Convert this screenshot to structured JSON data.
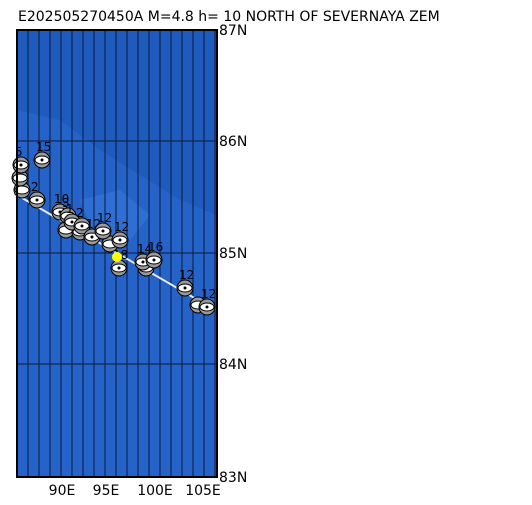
{
  "header": {
    "title": "E202505270450A M=4.8 h= 10 NORTH OF SEVERNAYA ZEM"
  },
  "map": {
    "lat_labels": [
      "87N",
      "86N",
      "85N",
      "84N",
      "83N"
    ],
    "lon_labels": [
      "90E",
      "95E",
      "100E",
      "105E"
    ],
    "stations": [
      {
        "label": "5"
      },
      {
        "label": "15"
      },
      {
        "label": "2"
      },
      {
        "label": "10"
      },
      {
        "label": "3"
      },
      {
        "label": "1"
      },
      {
        "label": "2"
      },
      {
        "label": "12"
      },
      {
        "label": "12"
      },
      {
        "label": "12"
      },
      {
        "label": "18"
      },
      {
        "label": "14"
      },
      {
        "label": "16"
      },
      {
        "label": "12"
      },
      {
        "label": "12"
      }
    ]
  }
}
